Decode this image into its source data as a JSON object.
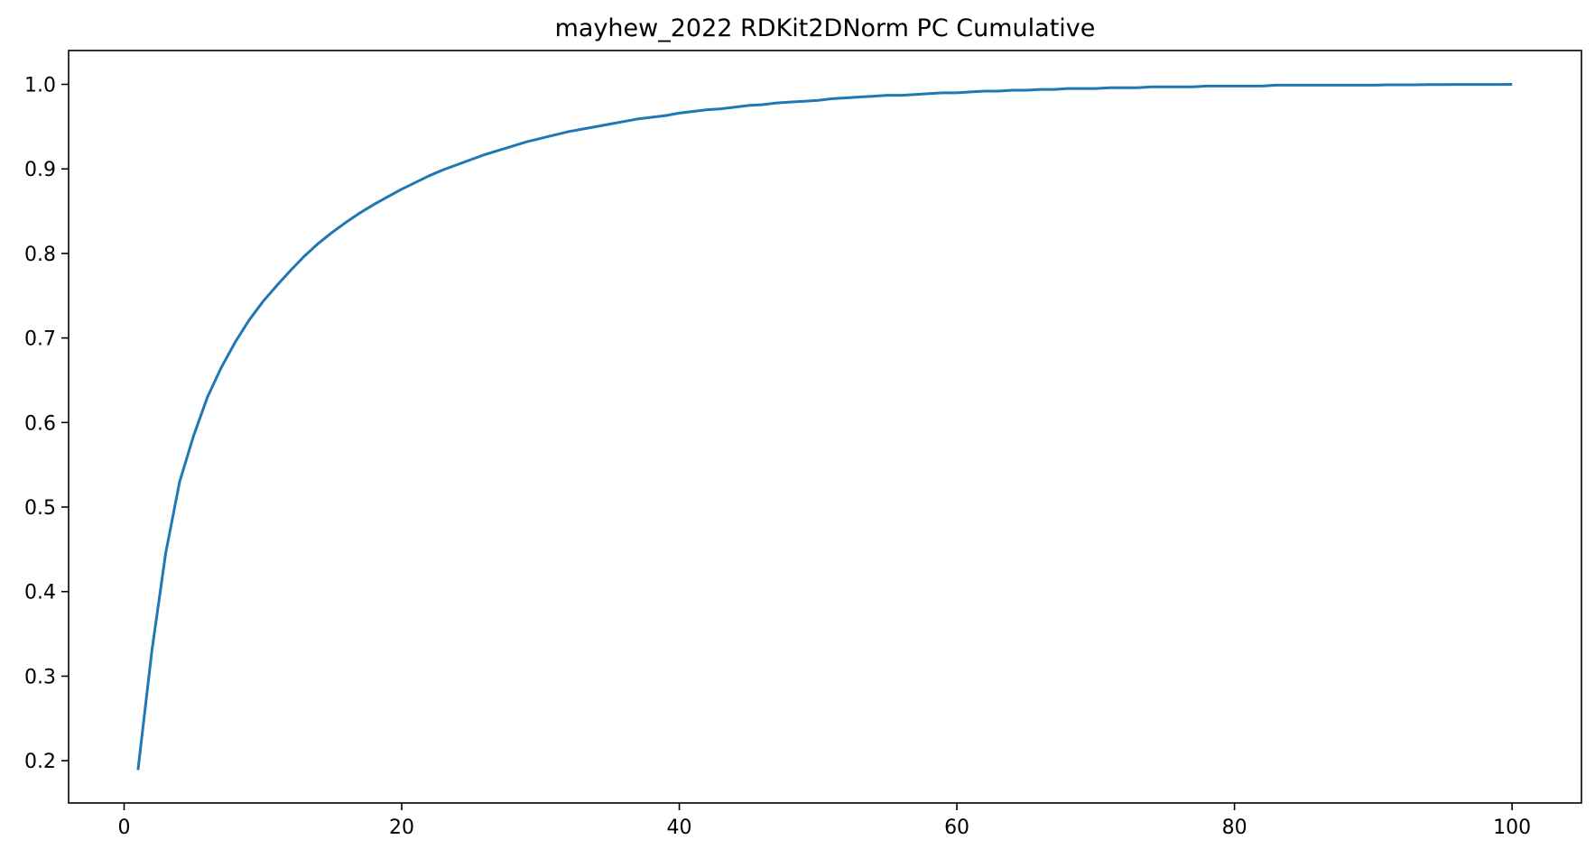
{
  "chart_data": {
    "type": "line",
    "title": "mayhew_2022 RDKit2DNorm PC Cumulative",
    "xlabel": "",
    "ylabel": "",
    "xlim": [
      -4,
      105
    ],
    "ylim": [
      0.15,
      1.04
    ],
    "x_ticks": [
      0,
      20,
      40,
      60,
      80,
      100
    ],
    "y_ticks": [
      0.2,
      0.3,
      0.4,
      0.5,
      0.6,
      0.7,
      0.8,
      0.9,
      1.0
    ],
    "x_tick_labels": [
      "0",
      "20",
      "40",
      "60",
      "80",
      "100"
    ],
    "y_tick_labels": [
      "0.2",
      "0.3",
      "0.4",
      "0.5",
      "0.6",
      "0.7",
      "0.8",
      "0.9",
      "1.0"
    ],
    "grid": false,
    "legend": "none",
    "series": [
      {
        "color": "#1f77b4",
        "x": [
          1,
          2,
          3,
          4,
          5,
          6,
          7,
          8,
          9,
          10,
          11,
          12,
          13,
          14,
          15,
          16,
          17,
          18,
          19,
          20,
          21,
          22,
          23,
          24,
          25,
          26,
          27,
          28,
          29,
          30,
          31,
          32,
          33,
          34,
          35,
          36,
          37,
          38,
          39,
          40,
          41,
          42,
          43,
          44,
          45,
          46,
          47,
          48,
          49,
          50,
          51,
          52,
          53,
          54,
          55,
          56,
          57,
          58,
          59,
          60,
          61,
          62,
          63,
          64,
          65,
          66,
          67,
          68,
          69,
          70,
          71,
          72,
          73,
          74,
          75,
          76,
          77,
          78,
          79,
          80,
          81,
          82,
          83,
          84,
          85,
          86,
          87,
          88,
          89,
          90,
          91,
          92,
          93,
          94,
          95,
          96,
          97,
          98,
          99,
          100
        ],
        "y": [
          0.189,
          0.33,
          0.446,
          0.53,
          0.584,
          0.63,
          0.665,
          0.695,
          0.721,
          0.743,
          0.762,
          0.78,
          0.797,
          0.812,
          0.825,
          0.837,
          0.848,
          0.858,
          0.867,
          0.876,
          0.884,
          0.892,
          0.899,
          0.905,
          0.911,
          0.917,
          0.922,
          0.927,
          0.932,
          0.936,
          0.94,
          0.944,
          0.947,
          0.95,
          0.953,
          0.956,
          0.959,
          0.961,
          0.963,
          0.966,
          0.968,
          0.97,
          0.971,
          0.973,
          0.975,
          0.976,
          0.978,
          0.979,
          0.98,
          0.981,
          0.983,
          0.984,
          0.985,
          0.986,
          0.987,
          0.987,
          0.988,
          0.989,
          0.99,
          0.99,
          0.991,
          0.992,
          0.992,
          0.993,
          0.993,
          0.994,
          0.994,
          0.995,
          0.995,
          0.995,
          0.996,
          0.996,
          0.996,
          0.997,
          0.997,
          0.997,
          0.997,
          0.998,
          0.998,
          0.998,
          0.998,
          0.998,
          0.999,
          0.999,
          0.999,
          0.999,
          0.999,
          0.999,
          0.999,
          0.999,
          0.9995,
          0.9995,
          0.9995,
          0.9997,
          0.9997,
          0.9998,
          0.9998,
          0.9999,
          0.9999,
          1.0
        ]
      }
    ]
  }
}
